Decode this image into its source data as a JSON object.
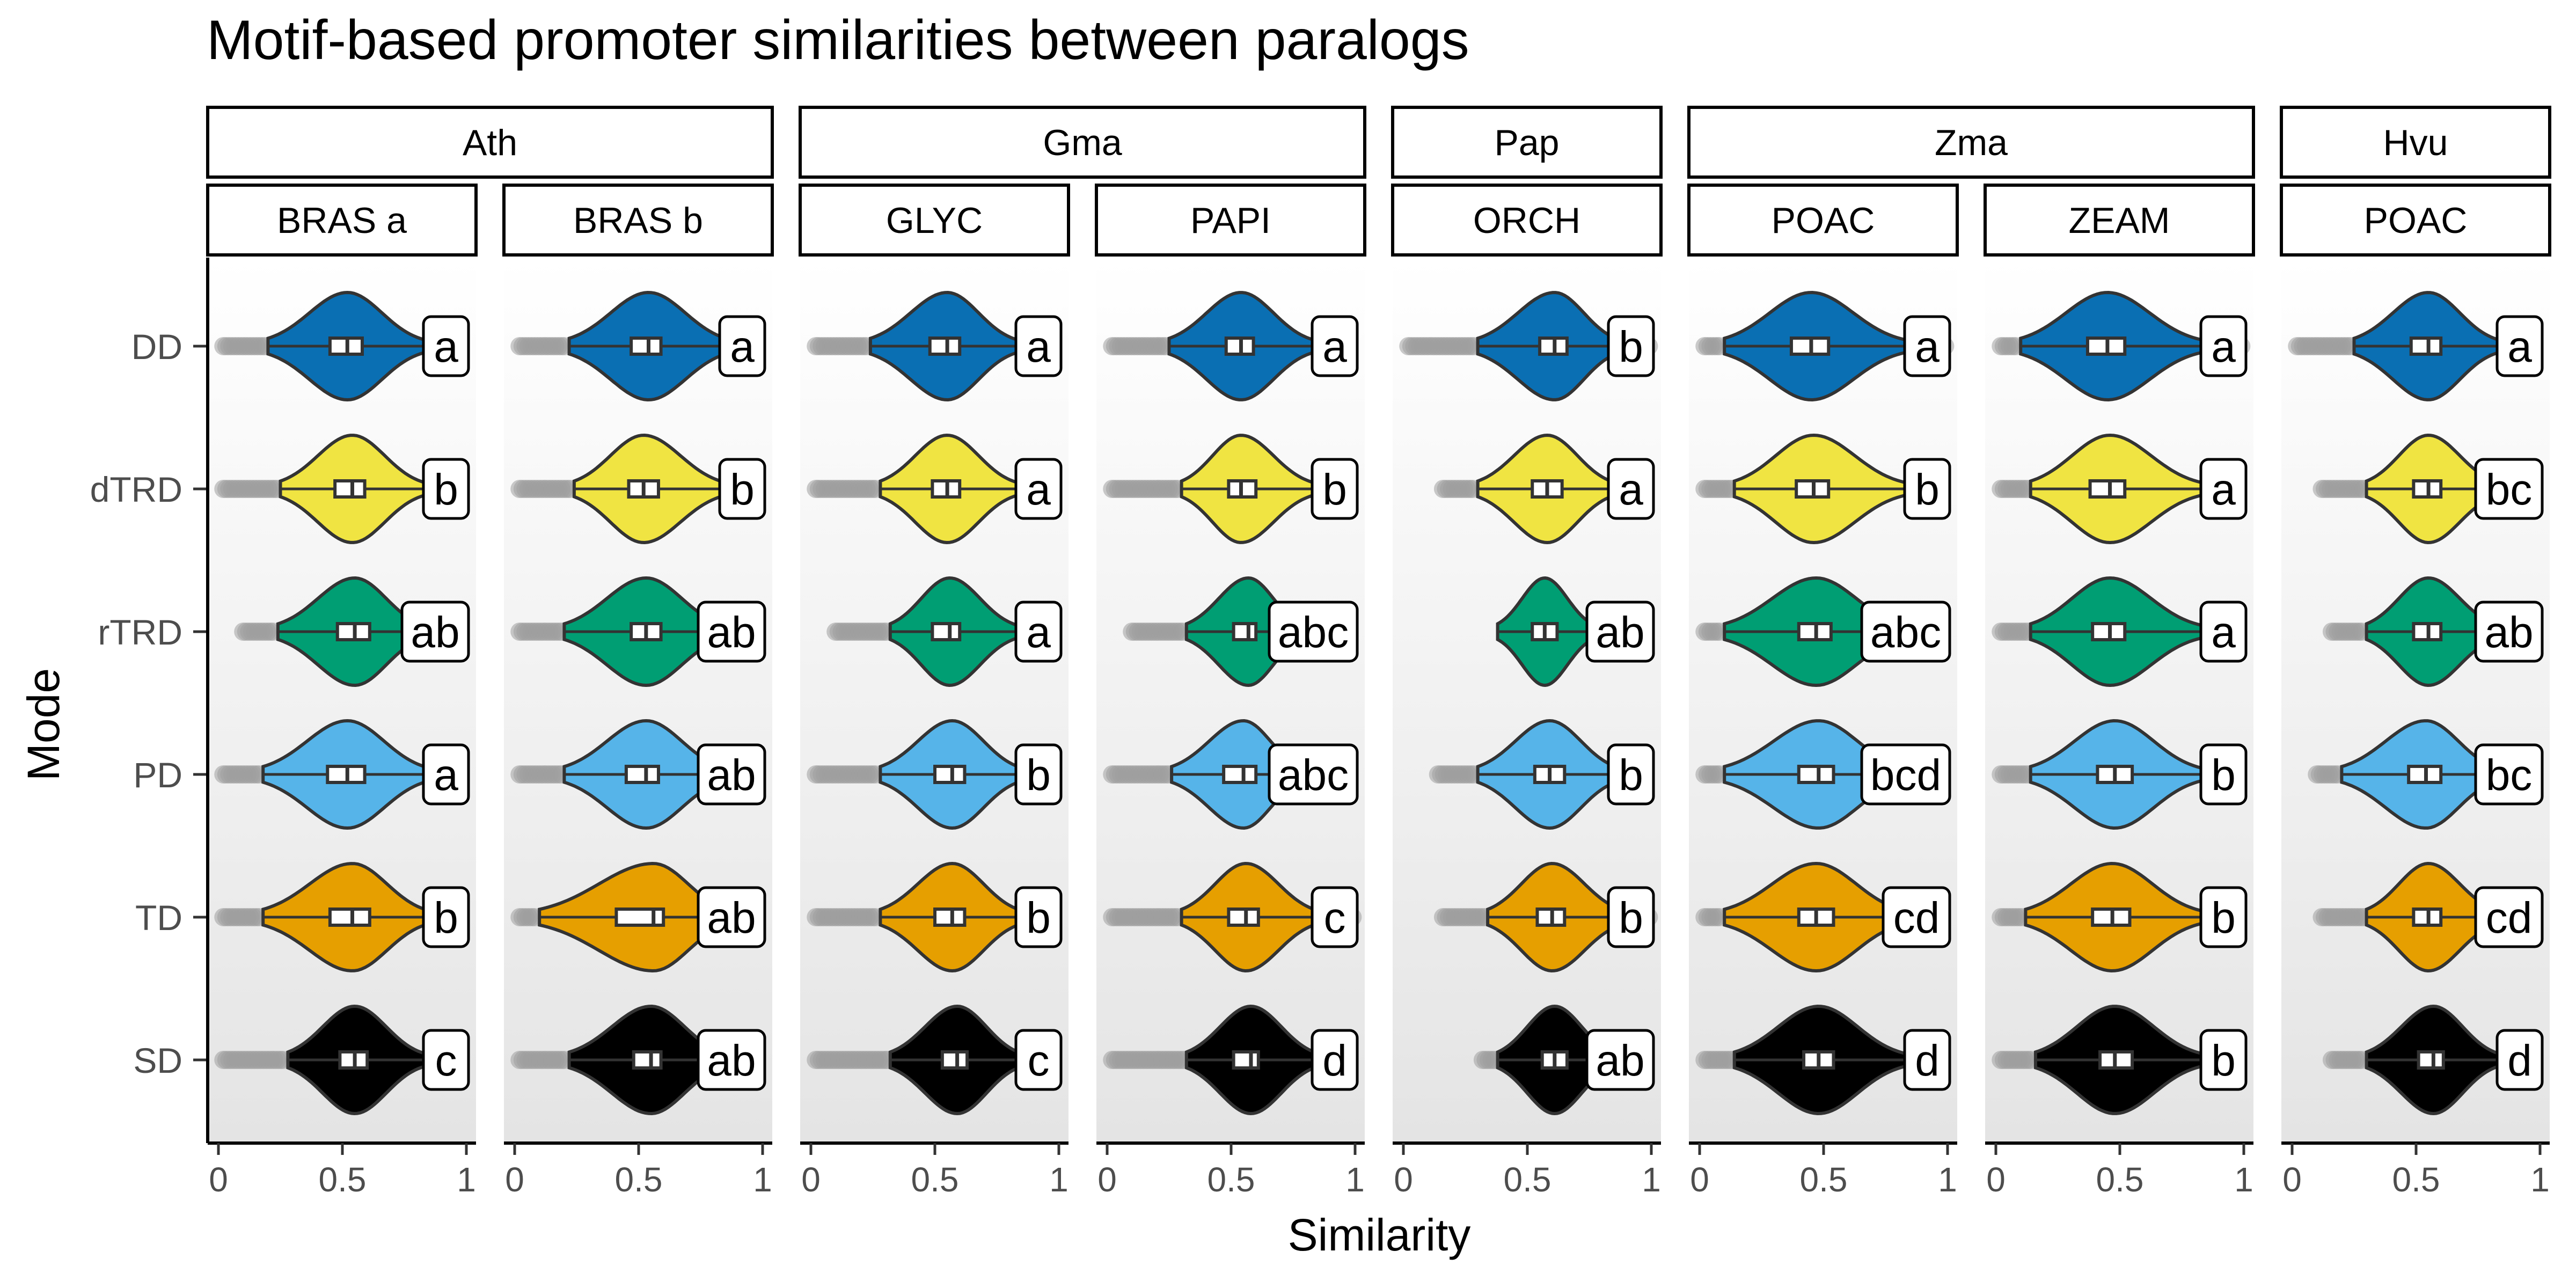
{
  "chart_data": {
    "type": "violin",
    "title": "Motif-based promoter similarities between paralogs",
    "xlabel": "Similarity",
    "ylabel": "Mode",
    "xlim": [
      0,
      1
    ],
    "x_ticks": [
      "0",
      "0.5",
      "1"
    ],
    "modes": [
      "DD",
      "dTRD",
      "rTRD",
      "PD",
      "TD",
      "SD"
    ],
    "mode_colors": {
      "DD": "#0a6fb3",
      "dTRD": "#f0e442",
      "rTRD": "#009e73",
      "PD": "#56b4e9",
      "TD": "#e69f00",
      "SD": "#000000"
    },
    "outlier_color": "#9e9e9e",
    "species": [
      {
        "name": "Ath",
        "panels": [
          0,
          1
        ]
      },
      {
        "name": "Gma",
        "panels": [
          2,
          3
        ]
      },
      {
        "name": "Pap",
        "panels": [
          4
        ]
      },
      {
        "name": "Zma",
        "panels": [
          5,
          6
        ]
      },
      {
        "name": "Hvu",
        "panels": [
          7
        ]
      }
    ],
    "panels": [
      {
        "family": "BRAS a",
        "medians": [
          0.52,
          0.54,
          0.55,
          0.52,
          0.54,
          0.55
        ],
        "q1": [
          0.45,
          0.47,
          0.48,
          0.44,
          0.45,
          0.49
        ],
        "q3": [
          0.58,
          0.59,
          0.61,
          0.59,
          0.61,
          0.6
        ],
        "range_min": [
          0.2,
          0.25,
          0.24,
          0.18,
          0.18,
          0.28
        ],
        "range_max": [
          0.84,
          0.84,
          0.84,
          0.86,
          0.86,
          0.84
        ],
        "outliers_lo": [
          0.02,
          0.02,
          0.1,
          0.02,
          0.02,
          0.02
        ],
        "outliers_hi": [
          null,
          null,
          null,
          0.95,
          0.95,
          null
        ],
        "letters": [
          "a",
          "b",
          "ab",
          "a",
          "b",
          "c"
        ]
      },
      {
        "family": "BRAS b",
        "medians": [
          0.54,
          0.52,
          0.53,
          0.53,
          0.56,
          0.55
        ],
        "q1": [
          0.47,
          0.46,
          0.47,
          0.45,
          0.41,
          0.48
        ],
        "q3": [
          0.59,
          0.58,
          0.59,
          0.58,
          0.6,
          0.59
        ],
        "range_min": [
          0.22,
          0.24,
          0.2,
          0.2,
          0.1,
          0.22
        ],
        "range_max": [
          0.88,
          0.86,
          0.86,
          0.86,
          0.88,
          0.86
        ],
        "outliers_lo": [
          0.02,
          0.02,
          0.02,
          0.02,
          0.02,
          0.02
        ],
        "outliers_hi": [
          null,
          null,
          null,
          null,
          null,
          null
        ],
        "letters": [
          "a",
          "b",
          "ab",
          "ab",
          "ab",
          "ab"
        ]
      },
      {
        "family": "GLYC",
        "medians": [
          0.55,
          0.55,
          0.56,
          0.57,
          0.57,
          0.59
        ],
        "q1": [
          0.48,
          0.49,
          0.49,
          0.5,
          0.5,
          0.53
        ],
        "q3": [
          0.6,
          0.6,
          0.6,
          0.62,
          0.62,
          0.63
        ],
        "range_min": [
          0.24,
          0.28,
          0.32,
          0.28,
          0.28,
          0.32
        ],
        "range_max": [
          0.84,
          0.84,
          0.84,
          0.86,
          0.86,
          0.86
        ],
        "outliers_lo": [
          0.02,
          0.02,
          0.1,
          0.02,
          0.02,
          0.02
        ],
        "outliers_hi": [
          0.97,
          0.97,
          null,
          0.97,
          null,
          null
        ],
        "letters": [
          "a",
          "a",
          "a",
          "b",
          "b",
          "c"
        ]
      },
      {
        "family": "PAPI",
        "medians": [
          0.54,
          0.54,
          0.57,
          0.55,
          0.56,
          0.58
        ],
        "q1": [
          0.48,
          0.49,
          0.51,
          0.47,
          0.49,
          0.51
        ],
        "q3": [
          0.59,
          0.6,
          0.6,
          0.6,
          0.61,
          0.61
        ],
        "range_min": [
          0.25,
          0.3,
          0.32,
          0.26,
          0.3,
          0.32
        ],
        "range_max": [
          0.84,
          0.84,
          0.8,
          0.8,
          0.86,
          0.86
        ],
        "outliers_lo": [
          0.02,
          0.02,
          0.1,
          0.02,
          0.02,
          0.02
        ],
        "outliers_hi": [
          null,
          null,
          null,
          null,
          0.99,
          null
        ],
        "letters": [
          "a",
          "b",
          "abc",
          "abc",
          "c",
          "d"
        ]
      },
      {
        "family": "ORCH",
        "medians": [
          0.61,
          0.58,
          0.57,
          0.59,
          0.6,
          0.61
        ],
        "q1": [
          0.55,
          0.52,
          0.52,
          0.53,
          0.54,
          0.56
        ],
        "q3": [
          0.66,
          0.64,
          0.62,
          0.65,
          0.65,
          0.66
        ],
        "range_min": [
          0.3,
          0.3,
          0.38,
          0.3,
          0.34,
          0.38
        ],
        "range_max": [
          0.88,
          0.86,
          0.78,
          0.88,
          0.9,
          0.86
        ],
        "outliers_lo": [
          0.02,
          0.16,
          null,
          0.14,
          0.16,
          0.32
        ],
        "outliers_hi": [
          0.99,
          null,
          null,
          null,
          0.99,
          null
        ],
        "letters": [
          "b",
          "a",
          "ab",
          "b",
          "b",
          "ab"
        ]
      },
      {
        "family": "POAC",
        "medians": [
          0.45,
          0.46,
          0.47,
          0.48,
          0.47,
          0.48
        ],
        "q1": [
          0.37,
          0.39,
          0.4,
          0.4,
          0.4,
          0.42
        ],
        "q3": [
          0.52,
          0.52,
          0.53,
          0.54,
          0.54,
          0.54
        ],
        "range_min": [
          0.1,
          0.14,
          0.1,
          0.1,
          0.1,
          0.14
        ],
        "range_max": [
          0.84,
          0.84,
          0.84,
          0.84,
          0.84,
          0.84
        ],
        "outliers_lo": [
          0.02,
          0.02,
          0.02,
          0.02,
          0.02,
          0.02
        ],
        "outliers_hi": [
          0.99,
          null,
          null,
          null,
          null,
          null
        ],
        "letters": [
          "a",
          "b",
          "abc",
          "bcd",
          "cd",
          "d"
        ]
      },
      {
        "family": "ZEAM",
        "medians": [
          0.45,
          0.46,
          0.46,
          0.48,
          0.47,
          0.48
        ],
        "q1": [
          0.37,
          0.38,
          0.39,
          0.41,
          0.39,
          0.42
        ],
        "q3": [
          0.52,
          0.52,
          0.52,
          0.55,
          0.54,
          0.55
        ],
        "range_min": [
          0.1,
          0.14,
          0.14,
          0.14,
          0.12,
          0.16
        ],
        "range_max": [
          0.84,
          0.84,
          0.84,
          0.84,
          0.84,
          0.84
        ],
        "outliers_lo": [
          0.02,
          0.02,
          0.02,
          0.02,
          0.02,
          0.02
        ],
        "outliers_hi": [
          0.99,
          null,
          null,
          null,
          null,
          null
        ],
        "letters": [
          "a",
          "a",
          "a",
          "b",
          "b",
          "b"
        ]
      },
      {
        "family": "POAC",
        "medians": [
          0.55,
          0.55,
          0.55,
          0.54,
          0.55,
          0.57
        ],
        "q1": [
          0.48,
          0.49,
          0.49,
          0.47,
          0.49,
          0.51
        ],
        "q3": [
          0.6,
          0.6,
          0.6,
          0.6,
          0.6,
          0.61
        ],
        "range_min": [
          0.25,
          0.3,
          0.3,
          0.2,
          0.3,
          0.3
        ],
        "range_max": [
          0.84,
          0.84,
          0.84,
          0.84,
          0.84,
          0.84
        ],
        "outliers_lo": [
          0.02,
          0.12,
          0.16,
          0.1,
          0.12,
          0.16
        ],
        "outliers_hi": [
          null,
          null,
          null,
          null,
          null,
          null
        ],
        "letters": [
          "a",
          "bc",
          "ab",
          "bc",
          "cd",
          "d"
        ]
      }
    ]
  }
}
